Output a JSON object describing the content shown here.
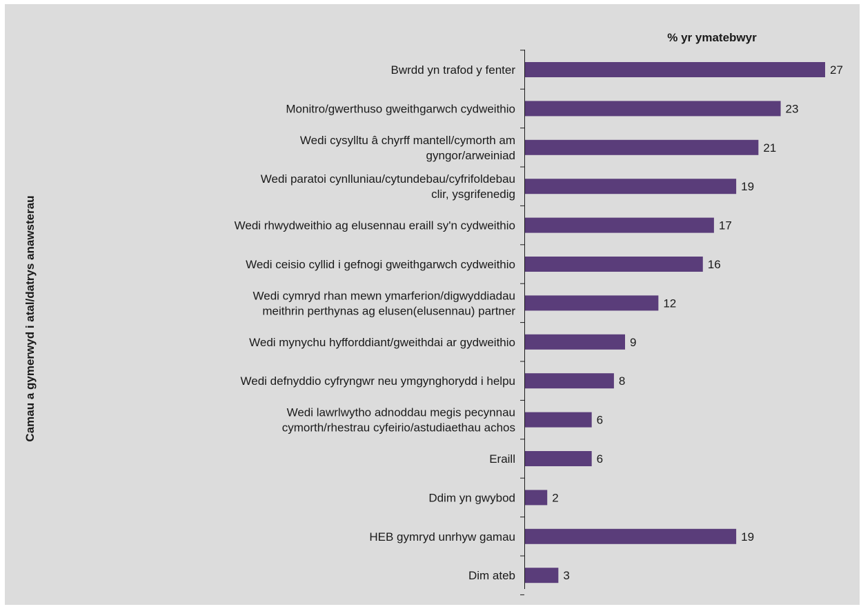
{
  "chart_data": {
    "type": "bar",
    "orientation": "horizontal",
    "title": "",
    "xlabel": "% yr ymatebwyr",
    "ylabel": "Camau a gymerwyd i atal/datrys anawsterau",
    "xlim": [
      0,
      27
    ],
    "grid": false,
    "bar_color": "#5a3d7a",
    "background_color": "#dcdcdc",
    "categories": [
      [
        "Bwrdd yn trafod y fenter"
      ],
      [
        "Monitro/gwerthuso gweithgarwch cydweithio"
      ],
      [
        "Wedi cysylltu â chyrff mantell/cymorth am",
        "gyngor/arweiniad"
      ],
      [
        "Wedi paratoi cynlluniau/cytundebau/cyfrifoldebau",
        "clir, ysgrifenedig"
      ],
      [
        "Wedi rhwydweithio ag elusennau eraill sy'n cydweithio"
      ],
      [
        "Wedi ceisio cyllid i gefnogi gweithgarwch cydweithio"
      ],
      [
        "Wedi cymryd rhan mewn ymarferion/digwyddiadau",
        "meithrin perthynas ag elusen(elusennau) partner"
      ],
      [
        "Wedi mynychu hyfforddiant/gweithdai ar gydweithio"
      ],
      [
        "Wedi defnyddio cyfryngwr neu ymgynghorydd i helpu"
      ],
      [
        "Wedi lawrlwytho adnoddau megis pecynnau",
        "cymorth/rhestrau cyfeirio/astudiaethau achos"
      ],
      [
        "Eraill"
      ],
      [
        "Ddim yn gwybod"
      ],
      [
        "HEB gymryd unrhyw gamau"
      ],
      [
        "Dim ateb"
      ]
    ],
    "values": [
      27,
      23,
      21,
      19,
      17,
      16,
      12,
      9,
      8,
      6,
      6,
      2,
      19,
      3
    ]
  }
}
